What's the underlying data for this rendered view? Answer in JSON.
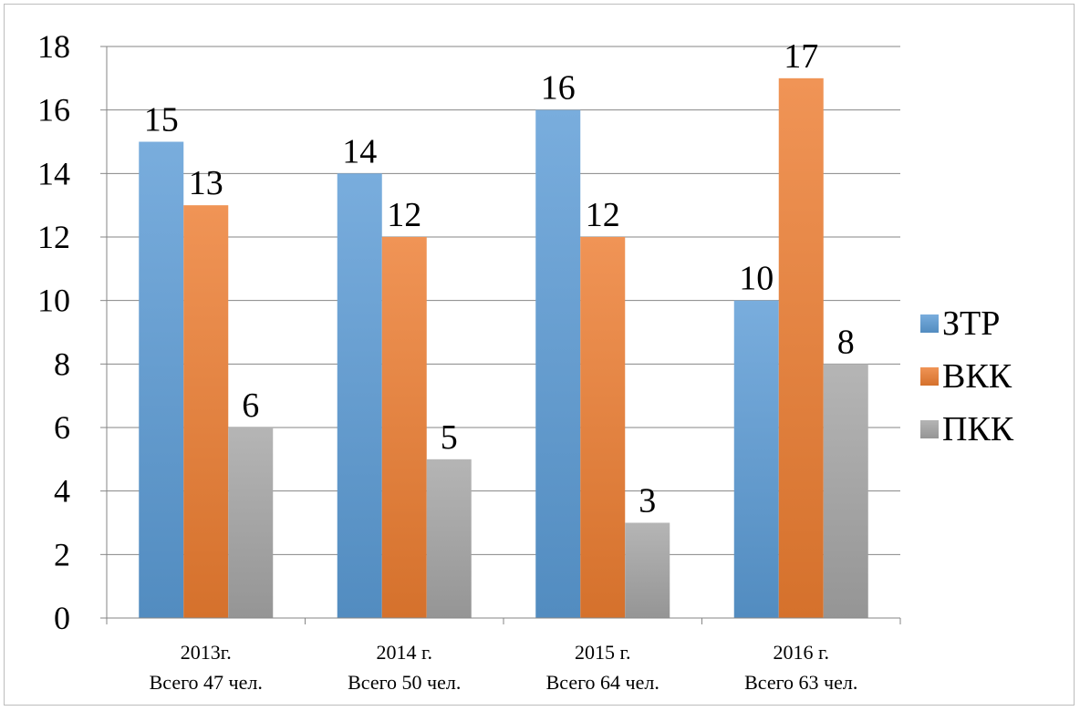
{
  "chart_data": {
    "type": "bar",
    "categories": [
      [
        "2013г.",
        "Всего 47 чел."
      ],
      [
        "2014 г.",
        "Всего 50 чел."
      ],
      [
        "2015 г.",
        "Всего 64 чел."
      ],
      [
        "2016 г.",
        "Всего 63 чел."
      ]
    ],
    "series": [
      {
        "name": "ЗТР",
        "values": [
          15,
          14,
          16,
          10
        ],
        "color": "#5b9bd5"
      },
      {
        "name": "ВКК",
        "values": [
          13,
          12,
          12,
          17
        ],
        "color": "#ed7d31"
      },
      {
        "name": "ПКК",
        "values": [
          6,
          5,
          3,
          8
        ],
        "color": "#a5a5a5"
      }
    ],
    "ylim": [
      0,
      18
    ],
    "yticks": [
      0,
      2,
      4,
      6,
      8,
      10,
      12,
      14,
      16,
      18
    ],
    "grid": true,
    "legend": "right",
    "data_labels": true
  }
}
